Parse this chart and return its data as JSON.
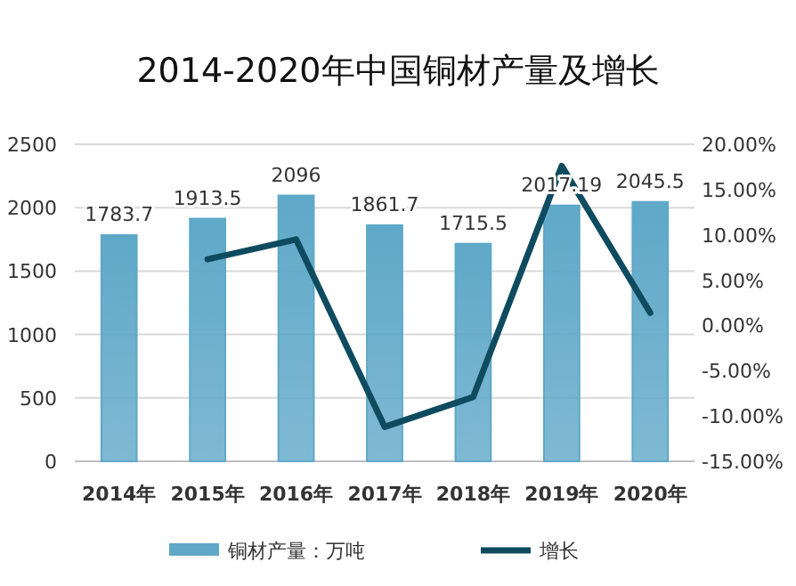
{
  "chart_data": {
    "type": "bar",
    "title": "2014-2020年中国铜材产量及增长",
    "categories": [
      "2014年",
      "2015年",
      "2016年",
      "2017年",
      "2018年",
      "2019年",
      "2020年"
    ],
    "series": [
      {
        "name": "铜材产量：万吨",
        "color": "#5fa8c8",
        "values": [
          1783.7,
          1913.5,
          2096,
          1861.7,
          1715.5,
          2017.19,
          2045.5
        ],
        "value_labels": [
          "1783.7",
          "1913.5",
          "2096",
          "1861.7",
          "1715.5",
          "2017.19",
          "2045.5"
        ]
      },
      {
        "name": "增长",
        "type": "line",
        "axis": "y2",
        "color": "#0e4b5f",
        "values": [
          null,
          7.3,
          9.5,
          -11.2,
          -7.9,
          17.6,
          1.4
        ]
      }
    ],
    "ylim": [
      0,
      2500
    ],
    "yticks": [
      0,
      500,
      1000,
      1500,
      2000,
      2500
    ],
    "y2lim": [
      -15,
      20
    ],
    "y2ticks": [
      {
        "value": -15,
        "label": "-15.00%"
      },
      {
        "value": -10,
        "label": "-10.00%"
      },
      {
        "value": -5,
        "label": "-5.00%"
      },
      {
        "value": 0,
        "label": "0.00%"
      },
      {
        "value": 5,
        "label": "5.00%"
      },
      {
        "value": 10,
        "label": "10.00%"
      },
      {
        "value": 15,
        "label": "15.00%"
      },
      {
        "value": 20,
        "label": "20.00%"
      }
    ],
    "grid": "y",
    "legend": "bottom"
  }
}
